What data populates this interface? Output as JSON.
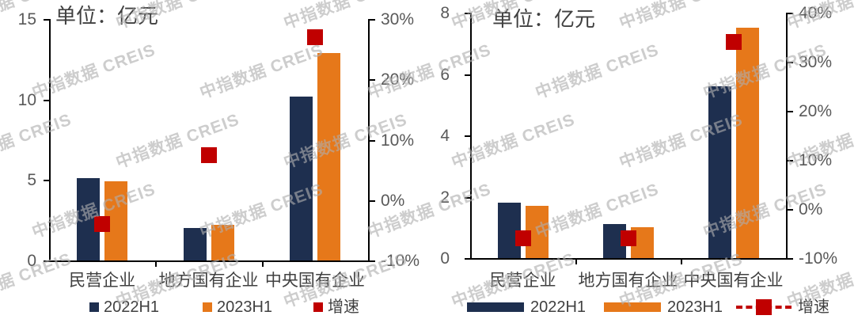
{
  "watermark": {
    "text": "中指数据 CREIS"
  },
  "chart_data": [
    {
      "type": "bar",
      "title": "单位：亿元",
      "categories": [
        "民营企业",
        "地方国有企业",
        "中央国有企业"
      ],
      "series": [
        {
          "name": "2022H1",
          "kind": "bar",
          "axis": "left",
          "color": "#1E2F4F",
          "values": [
            5.1,
            2.0,
            10.2
          ]
        },
        {
          "name": "2023H1",
          "kind": "bar",
          "axis": "left",
          "color": "#E6781A",
          "values": [
            4.9,
            2.2,
            12.9
          ]
        },
        {
          "name": "增速",
          "kind": "marker",
          "axis": "right",
          "color": "#C00000",
          "values": [
            -4,
            7.5,
            27
          ]
        }
      ],
      "left_axis": {
        "min": 0,
        "max": 15,
        "step": 5,
        "ticks": [
          "0",
          "5",
          "10",
          "15"
        ]
      },
      "right_axis": {
        "min": -10,
        "max": 30,
        "step": 10,
        "ticks": [
          "-10%",
          "0%",
          "10%",
          "20%",
          "30%"
        ]
      },
      "legend": [
        {
          "label": "2022H1",
          "swatch": "square",
          "color": "#1E2F4F"
        },
        {
          "label": "2023H1",
          "swatch": "square",
          "color": "#E6781A"
        },
        {
          "label": "增速",
          "swatch": "square",
          "color": "#C00000"
        }
      ],
      "legend_position": "bottom",
      "grid": false
    },
    {
      "type": "bar",
      "title": "单位：亿元",
      "categories": [
        "民营企业",
        "地方国有企业",
        "中央国有企业"
      ],
      "series": [
        {
          "name": "2022H1",
          "kind": "bar",
          "axis": "left",
          "color": "#1E2F4F",
          "values": [
            1.8,
            1.1,
            5.6
          ]
        },
        {
          "name": "2023H1",
          "kind": "bar",
          "axis": "left",
          "color": "#E6781A",
          "values": [
            1.7,
            1.0,
            7.5
          ]
        },
        {
          "name": "增速",
          "kind": "marker",
          "axis": "right",
          "color": "#C00000",
          "values": [
            -6,
            -6,
            34
          ]
        }
      ],
      "left_axis": {
        "min": 0,
        "max": 8,
        "step": 2,
        "ticks": [
          "0",
          "2",
          "4",
          "6",
          "8"
        ]
      },
      "right_axis": {
        "min": -10,
        "max": 40,
        "step": 10,
        "ticks": [
          "-10%",
          "0%",
          "10%",
          "20%",
          "30%",
          "40%"
        ]
      },
      "legend": [
        {
          "label": "2022H1",
          "swatch": "bar",
          "color": "#1E2F4F"
        },
        {
          "label": "2023H1",
          "swatch": "bar",
          "color": "#E6781A"
        },
        {
          "label": "增速",
          "swatch": "dash-marker",
          "color": "#C00000"
        }
      ],
      "legend_position": "bottom",
      "grid": false
    }
  ],
  "colors": {
    "bar_2022": "#1E2F4F",
    "bar_2023": "#E6781A",
    "growth_marker": "#C00000",
    "axis_text": "#595959",
    "label_text": "#404040",
    "axis_line": "#000000",
    "watermark": "#BDBDBD"
  }
}
